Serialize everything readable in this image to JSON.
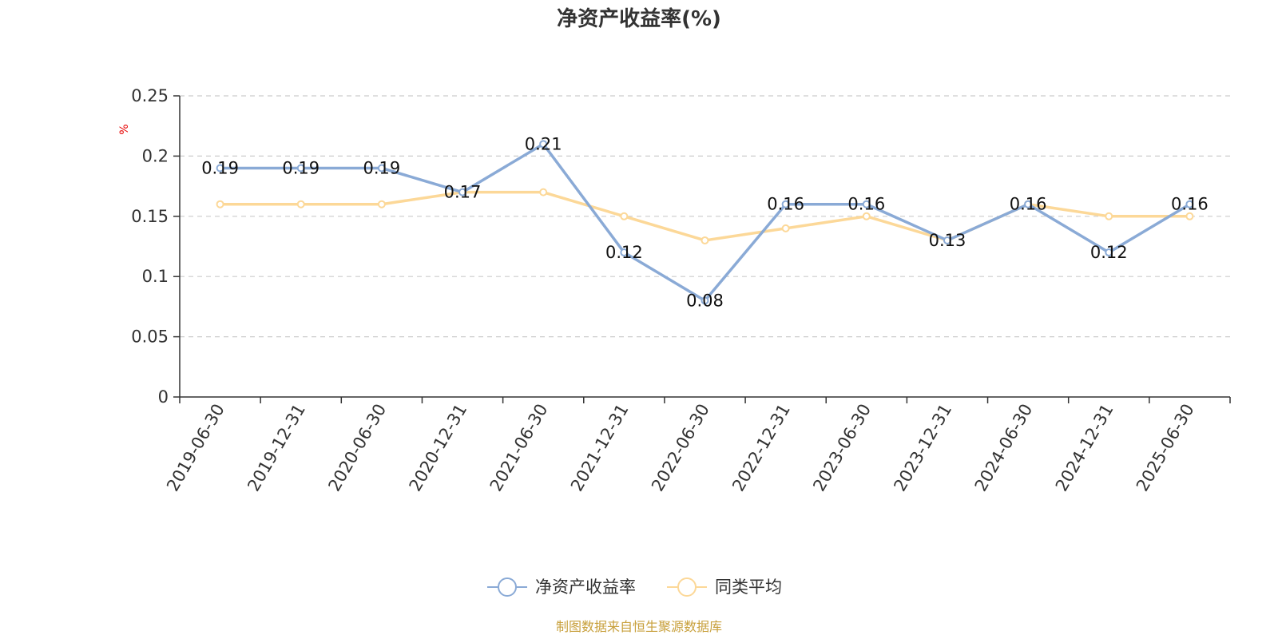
{
  "chart_data": {
    "type": "line",
    "title": "净资产收益率(%)",
    "ylabel": "%",
    "xlabel": "",
    "categories": [
      "2019-06-30",
      "2019-12-31",
      "2020-06-30",
      "2020-12-31",
      "2021-06-30",
      "2021-12-31",
      "2022-06-30",
      "2022-12-31",
      "2023-06-30",
      "2023-12-31",
      "2024-06-30",
      "2024-12-31",
      "2025-06-30"
    ],
    "ylim": [
      0,
      0.25
    ],
    "yticks": [
      "0",
      "0.05",
      "0.1",
      "0.15",
      "0.2",
      "0.25"
    ],
    "grid": true,
    "legend_position": "bottom",
    "series": [
      {
        "name": "净资产收益率",
        "color": "#8aaad6",
        "values": [
          0.19,
          0.19,
          0.19,
          0.17,
          0.21,
          0.12,
          0.08,
          0.16,
          0.16,
          0.13,
          0.16,
          0.12,
          0.16
        ],
        "labels": [
          "0.19",
          "0.19",
          "0.19",
          "0.17",
          "0.21",
          "0.12",
          "0.08",
          "0.16",
          "0.16",
          "0.13",
          "0.16",
          "0.12",
          "0.16"
        ]
      },
      {
        "name": "同类平均",
        "color": "#fcd898",
        "values": [
          0.16,
          0.16,
          0.16,
          0.17,
          0.17,
          0.15,
          0.13,
          0.14,
          0.15,
          0.13,
          0.16,
          0.15,
          0.15
        ]
      }
    ]
  },
  "source_note": "制图数据来自恒生聚源数据库"
}
